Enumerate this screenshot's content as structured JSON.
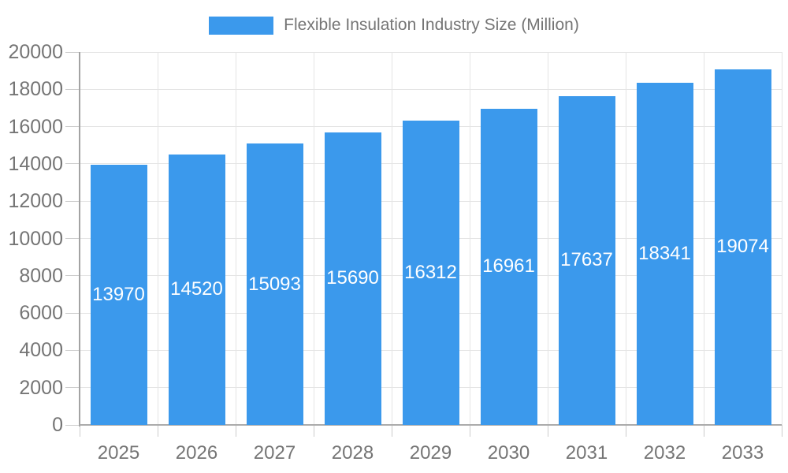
{
  "legend": {
    "label": "Flexible Insulation Industry Size (Million)"
  },
  "chart_data": {
    "type": "bar",
    "title": "Flexible Insulation Industry Size (Million)",
    "categories": [
      "2025",
      "2026",
      "2027",
      "2028",
      "2029",
      "2030",
      "2031",
      "2032",
      "2033"
    ],
    "values": [
      13970,
      14520,
      15093,
      15690,
      16312,
      16961,
      17637,
      18341,
      19074
    ],
    "series": [
      {
        "name": "Flexible Insulation Industry Size (Million)",
        "values": [
          13970,
          14520,
          15093,
          15690,
          16312,
          16961,
          17637,
          18341,
          19074
        ]
      }
    ],
    "xlabel": "",
    "ylabel": "",
    "ylim": [
      0,
      20000
    ],
    "ytick_step": 2000,
    "ytick_labels": [
      "0",
      "2000",
      "4000",
      "6000",
      "8000",
      "10000",
      "12000",
      "14000",
      "16000",
      "18000",
      "20000"
    ],
    "grid": true,
    "legend_position": "top",
    "bar_labels_shown": true
  },
  "colors": {
    "bar": "#3b99ec",
    "bar_label": "#ffffff",
    "axis_text": "#757575",
    "gridline": "#e4e4e4",
    "tick": "#cccccc",
    "axis_line": "#a3a3a3",
    "background": "#ffffff"
  }
}
